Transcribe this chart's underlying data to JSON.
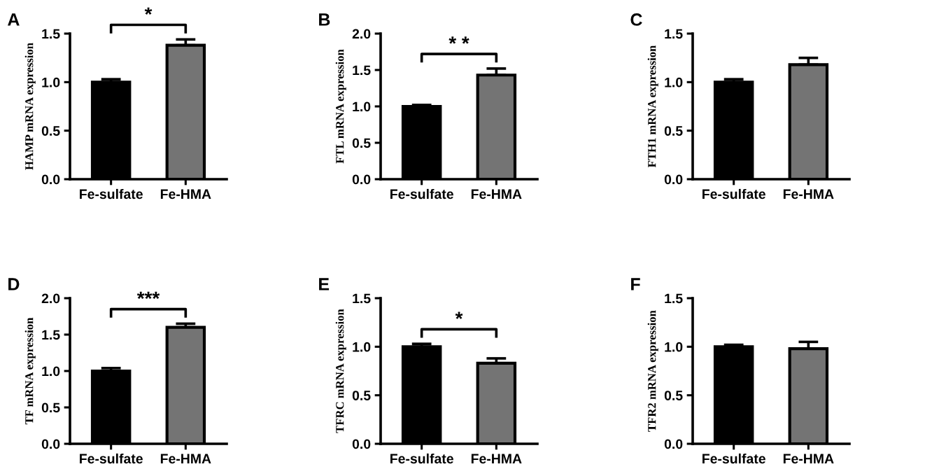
{
  "chart_data": [
    {
      "type": "bar",
      "title": "A",
      "ylabel": "HAMP mRNA expression",
      "categories": [
        "Fe-sulfate",
        "Fe-HMA"
      ],
      "values": [
        1.0,
        1.38
      ],
      "errors": [
        0.03,
        0.06
      ],
      "colors": [
        "#000000",
        "#747474"
      ],
      "ylim": [
        0,
        1.5
      ],
      "yticks": [
        {
          "value": 0,
          "label": "0.0"
        },
        {
          "value": 0.5,
          "label": "0.5"
        },
        {
          "value": 1,
          "label": "1.0"
        },
        {
          "value": 1.5,
          "label": "1.5"
        }
      ],
      "annotations": [
        "*"
      ]
    },
    {
      "type": "bar",
      "title": "B",
      "ylabel": "FTL mRNA expression",
      "categories": [
        "Fe-sulfate",
        "Fe-HMA"
      ],
      "values": [
        1.0,
        1.43
      ],
      "errors": [
        0.02,
        0.09
      ],
      "colors": [
        "#000000",
        "#747474"
      ],
      "ylim": [
        0,
        2.0
      ],
      "yticks": [
        {
          "value": 0,
          "label": "0.0"
        },
        {
          "value": 0.5,
          "label": "0.5"
        },
        {
          "value": 1,
          "label": "1.0"
        },
        {
          "value": 1.5,
          "label": "1.5"
        },
        {
          "value": 2,
          "label": "2.0"
        }
      ],
      "annotations": [
        "* *"
      ]
    },
    {
      "type": "bar",
      "title": "C",
      "ylabel": "FTH1 mRNA expression",
      "categories": [
        "Fe-sulfate",
        "Fe-HMA"
      ],
      "values": [
        1.0,
        1.18
      ],
      "errors": [
        0.03,
        0.07
      ],
      "colors": [
        "#000000",
        "#747474"
      ],
      "ylim": [
        0,
        1.5
      ],
      "yticks": [
        {
          "value": 0,
          "label": "0.0"
        },
        {
          "value": 0.5,
          "label": "0.5"
        },
        {
          "value": 1,
          "label": "1.0"
        },
        {
          "value": 1.5,
          "label": "1.5"
        }
      ]
    },
    {
      "type": "bar",
      "title": "D",
      "ylabel": "TF mRNA expression",
      "categories": [
        "Fe-sulfate",
        "Fe-HMA"
      ],
      "values": [
        1.0,
        1.6
      ],
      "errors": [
        0.04,
        0.05
      ],
      "colors": [
        "#000000",
        "#747474"
      ],
      "ylim": [
        0,
        2.0
      ],
      "yticks": [
        {
          "value": 0,
          "label": "0.0"
        },
        {
          "value": 0.5,
          "label": "0.5"
        },
        {
          "value": 1,
          "label": "1.0"
        },
        {
          "value": 1.5,
          "label": "1.5"
        },
        {
          "value": 2,
          "label": "2.0"
        }
      ],
      "annotations": [
        "***"
      ]
    },
    {
      "type": "bar",
      "title": "E",
      "ylabel": "TFRC mRNA expression",
      "categories": [
        "Fe-sulfate",
        "Fe-HMA"
      ],
      "values": [
        1.0,
        0.83
      ],
      "errors": [
        0.03,
        0.05
      ],
      "colors": [
        "#000000",
        "#747474"
      ],
      "ylim": [
        0,
        1.5
      ],
      "yticks": [
        {
          "value": 0,
          "label": "0.0"
        },
        {
          "value": 0.5,
          "label": "0.5"
        },
        {
          "value": 1,
          "label": "1.0"
        },
        {
          "value": 1.5,
          "label": "1.5"
        }
      ],
      "annotations": [
        "*"
      ]
    },
    {
      "type": "bar",
      "title": "F",
      "ylabel": "TFR2 mRNA expression",
      "categories": [
        "Fe-sulfate",
        "Fe-HMA"
      ],
      "values": [
        1.0,
        0.98
      ],
      "errors": [
        0.02,
        0.07
      ],
      "colors": [
        "#000000",
        "#747474"
      ],
      "ylim": [
        0,
        1.5
      ],
      "yticks": [
        {
          "value": 0,
          "label": "0.0"
        },
        {
          "value": 0.5,
          "label": "0.5"
        },
        {
          "value": 1,
          "label": "1.0"
        },
        {
          "value": 1.5,
          "label": "1.5"
        }
      ]
    }
  ]
}
